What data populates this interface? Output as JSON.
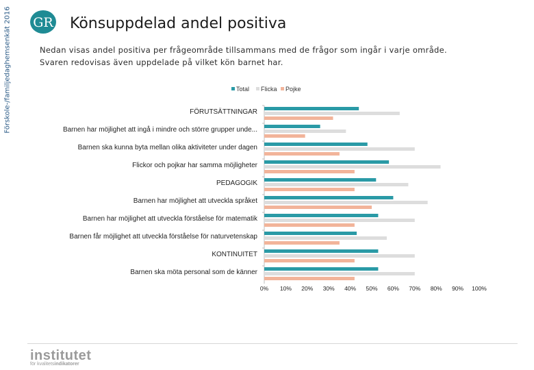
{
  "side_label": "Förskole-/familjedaghemsenkät 2016",
  "logo": {
    "text": "GR",
    "color": "#1f8b94"
  },
  "header": {
    "title": "Könsuppdelad andel positiva",
    "description_line1": "Nedan visas andel positiva per frågeområde tillsammans med de frågor som ingår i varje område.",
    "description_line2": "Svaren redovisas även uppdelade på vilket kön barnet har."
  },
  "footer": {
    "brand": "institutet",
    "sub_prefix": "för kvalitets",
    "sub_suffix": "indikatorer"
  },
  "colors": {
    "total": "#2a9aa6",
    "flicka": "#dddddd",
    "pojke": "#f2b49a"
  },
  "chart_data": {
    "type": "bar",
    "orientation": "horizontal",
    "title": "Könsuppdelad andel positiva",
    "legend_position": "top",
    "xlim": [
      0,
      100
    ],
    "x_ticks": [
      "0%",
      "10%",
      "20%",
      "30%",
      "40%",
      "50%",
      "60%",
      "70%",
      "80%",
      "90%",
      "100%"
    ],
    "categories": [
      "FÖRUTSÄTTNINGAR",
      "Barnen har möjlighet att ingå i mindre och större grupper unde...",
      "Barnen ska kunna byta mellan olika aktiviteter under dagen",
      "Flickor och pojkar har samma möjligheter",
      "PEDAGOGIK",
      "Barnen har möjlighet att utveckla språket",
      "Barnen har möjlighet att utveckla förståelse för matematik",
      "Barnen får möjlighet att utveckla förståelse för naturvetenskap",
      "KONTINUITET",
      "Barnen ska möta personal som de känner"
    ],
    "series": [
      {
        "name": "Total",
        "values": [
          44,
          26,
          48,
          58,
          52,
          60,
          53,
          43,
          53,
          53
        ]
      },
      {
        "name": "Flicka",
        "values": [
          63,
          38,
          70,
          82,
          67,
          76,
          70,
          57,
          70,
          70
        ]
      },
      {
        "name": "Pojke",
        "values": [
          32,
          19,
          35,
          42,
          42,
          50,
          42,
          35,
          42,
          42
        ]
      }
    ]
  }
}
